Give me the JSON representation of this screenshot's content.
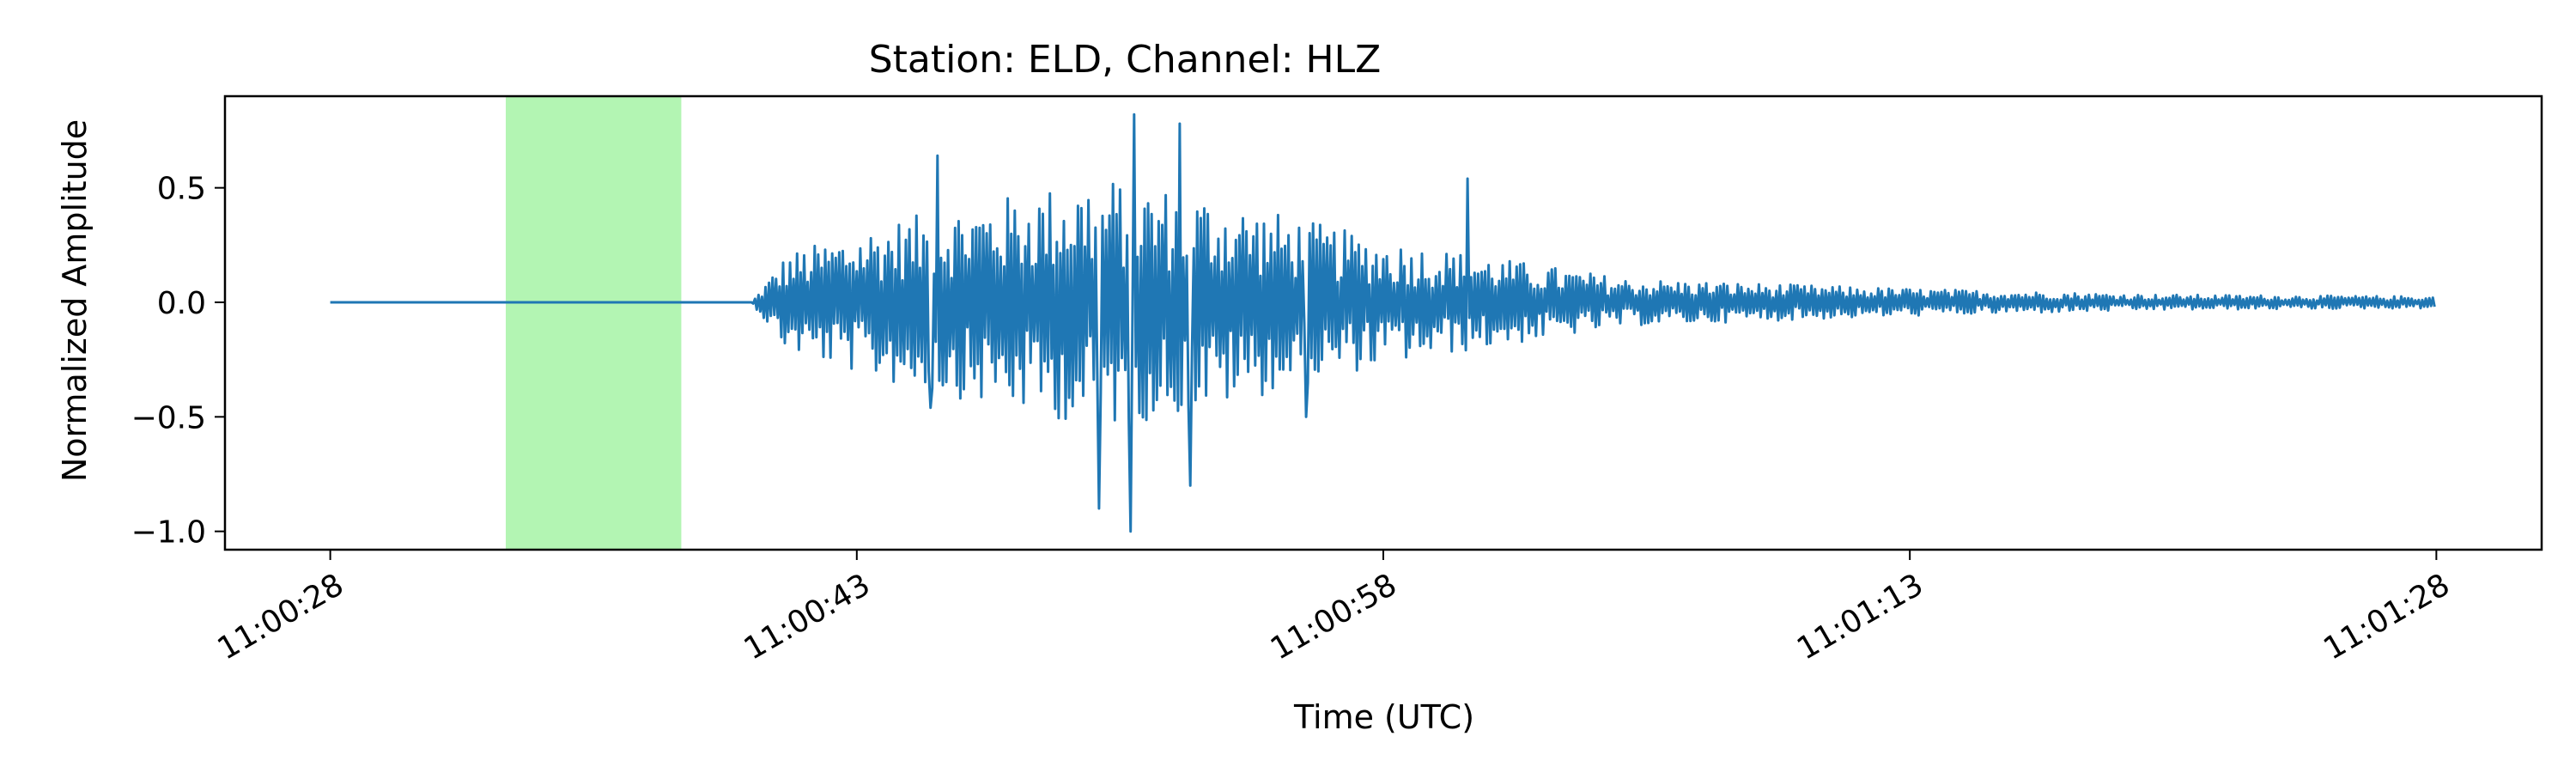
{
  "chart_data": {
    "type": "line",
    "title": "Station: ELD, Channel: HLZ",
    "xlabel": "Time (UTC)",
    "ylabel": "Normalized Amplitude",
    "xlim": [
      "11:00:25",
      "11:01:31"
    ],
    "ylim": [
      -1.08,
      0.9
    ],
    "x_ticks": [
      "11:00:28",
      "11:00:43",
      "11:00:58",
      "11:01:13",
      "11:01:28"
    ],
    "y_ticks": [
      -1.0,
      -0.5,
      0.0,
      0.5
    ],
    "y_tick_labels": [
      "−1.0",
      "−0.5",
      "0.0",
      "0.5"
    ],
    "grid": false,
    "highlight_span": {
      "start": "11:00:33",
      "end": "11:00:38",
      "color": "#b3f5b3"
    },
    "series": [
      {
        "color": "#1f77b4",
        "x_start": "11:00:28",
        "x_end": "11:01:28",
        "envelope_keypoints": [
          {
            "t": "11:00:28",
            "amp": 0.0
          },
          {
            "t": "11:00:40",
            "amp": 0.0
          },
          {
            "t": "11:00:41",
            "amp": 0.25
          },
          {
            "t": "11:00:44",
            "amp": 0.42
          },
          {
            "t": "11:00:50",
            "amp": 0.65
          },
          {
            "t": "11:00:53",
            "amp": 0.55
          },
          {
            "t": "11:00:58",
            "amp": 0.32
          },
          {
            "t": "11:01:05",
            "amp": 0.12
          },
          {
            "t": "11:01:13",
            "amp": 0.07
          },
          {
            "t": "11:01:20",
            "amp": 0.04
          },
          {
            "t": "11:01:28",
            "amp": 0.03
          }
        ],
        "peaks": [
          {
            "t": "11:00:45.3",
            "v": 0.64
          },
          {
            "t": "11:00:45.1",
            "v": -0.46
          },
          {
            "t": "11:00:50.9",
            "v": 0.82
          },
          {
            "t": "11:00:50.8",
            "v": -1.0
          },
          {
            "t": "11:00:49.9",
            "v": -0.9
          },
          {
            "t": "11:00:52.2",
            "v": 0.78
          },
          {
            "t": "11:00:52.5",
            "v": -0.8
          },
          {
            "t": "11:00:55.8",
            "v": -0.5
          },
          {
            "t": "11:01:00.4",
            "v": 0.54
          }
        ]
      }
    ]
  }
}
